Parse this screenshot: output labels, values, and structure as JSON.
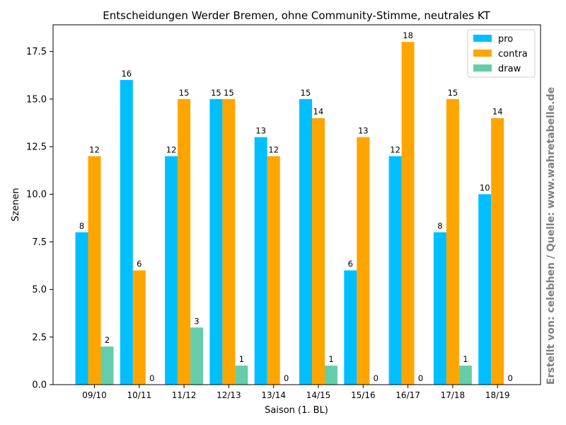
{
  "chart_data": {
    "type": "bar",
    "title": "Entscheidungen Werder Bremen, ohne Community-Stimme, neutrales KT",
    "xlabel": "Saison (1. BL)",
    "ylabel": "Szenen",
    "categories": [
      "09/10",
      "10/11",
      "11/12",
      "12/13",
      "13/14",
      "14/15",
      "15/16",
      "16/17",
      "17/18",
      "18/19"
    ],
    "series": [
      {
        "name": "pro",
        "color": "#00bfff",
        "values": [
          8,
          16,
          12,
          15,
          13,
          15,
          6,
          12,
          8,
          10
        ]
      },
      {
        "name": "contra",
        "color": "#ffa500",
        "values": [
          12,
          6,
          15,
          15,
          12,
          14,
          13,
          18,
          15,
          14
        ]
      },
      {
        "name": "draw",
        "color": "#66cdaa",
        "values": [
          2,
          0,
          3,
          1,
          0,
          1,
          0,
          0,
          1,
          0
        ]
      }
    ],
    "ylim": [
      0,
      18.9
    ],
    "yticks": [
      "0.0",
      "2.5",
      "5.0",
      "7.5",
      "10.0",
      "12.5",
      "15.0",
      "17.5"
    ],
    "legend_position": "top-right",
    "grid": false,
    "data_labels": true
  },
  "credit": "Erstellt von: celebhen / Quelle: www.wahretabelle.de",
  "colors": {
    "credit": "#808080",
    "axis": "#000000"
  }
}
